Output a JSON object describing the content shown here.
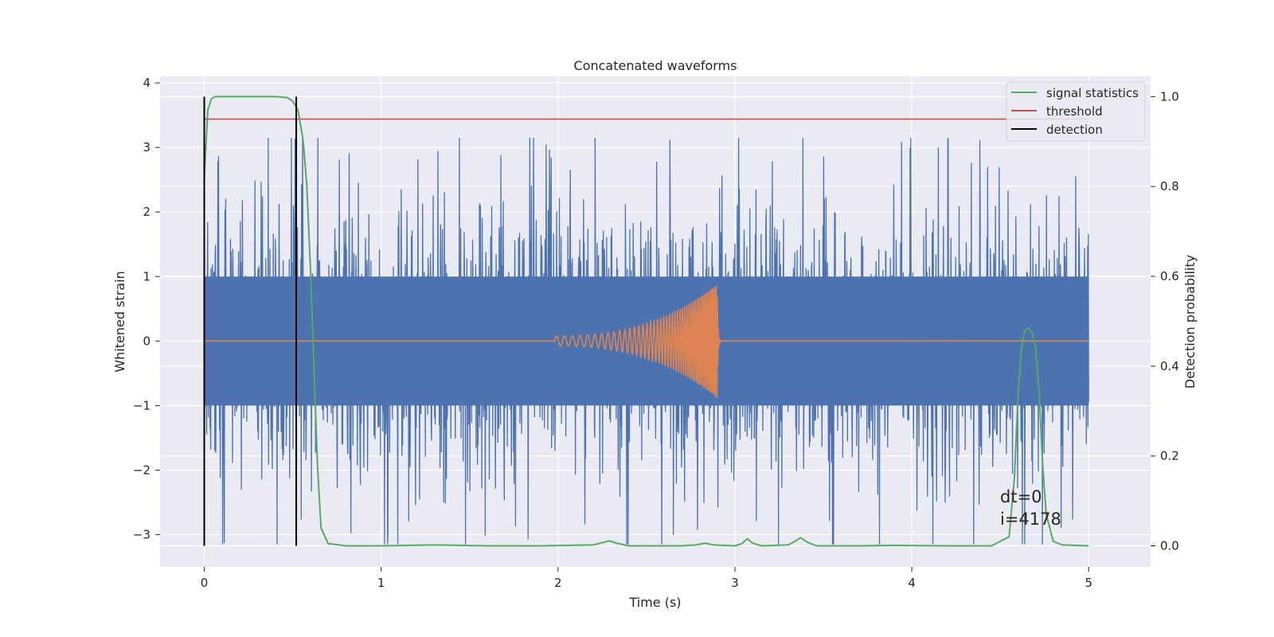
{
  "chart_data": {
    "type": "line",
    "title": "Concatenated waveforms",
    "xlabel": "Time (s)",
    "ylabel": "Whitened strain",
    "ylabel_right": "Detection probability",
    "xlim": [
      -0.25,
      5.35
    ],
    "ylim": [
      -3.5,
      4.1
    ],
    "ylim_right": [
      -0.047,
      1.045
    ],
    "xticks": [
      0,
      1,
      2,
      3,
      4,
      5
    ],
    "yticks": [
      -3,
      -2,
      -1,
      0,
      1,
      2,
      3,
      4
    ],
    "yticks_right": [
      0.0,
      0.2,
      0.4,
      0.6,
      0.8,
      1.0
    ],
    "xtick_labels": [
      "0",
      "1",
      "2",
      "3",
      "4",
      "5"
    ],
    "ytick_labels": [
      "−3",
      "−2",
      "−1",
      "0",
      "1",
      "2",
      "3",
      "4"
    ],
    "ytick_right_labels": [
      "0.0",
      "0.2",
      "0.4",
      "0.6",
      "0.8",
      "1.0"
    ],
    "grid": true,
    "legend_position": "top-right",
    "series": [
      {
        "name": "",
        "role": "whitened strain noise",
        "color": "#4c72b0",
        "axis": "left",
        "x_range": [
          0,
          5
        ],
        "core_amplitude": 1.0,
        "peak_max": 3.15,
        "peak_min": -3.15
      },
      {
        "name": "",
        "role": "injected chirp",
        "color": "#dd8452",
        "axis": "left",
        "x_range": [
          0,
          5
        ],
        "chirp_start": 1.98,
        "chirp_end": 2.9,
        "chirp_peak_amplitude": 0.88
      },
      {
        "name": "signal statistics",
        "color": "#55a868",
        "axis": "right",
        "x": [
          0,
          0.02,
          0.04,
          0.06,
          0.1,
          0.2,
          0.3,
          0.4,
          0.47,
          0.5,
          0.53,
          0.56,
          0.58,
          0.6,
          0.62,
          0.64,
          0.66,
          0.7,
          0.8,
          1.0,
          1.3,
          1.6,
          1.9,
          2.2,
          2.25,
          2.29,
          2.33,
          2.4,
          2.7,
          2.78,
          2.83,
          2.88,
          3.0,
          3.04,
          3.07,
          3.1,
          3.15,
          3.3,
          3.34,
          3.37,
          3.41,
          3.46,
          3.7,
          3.9,
          4.2,
          4.45,
          4.55,
          4.58,
          4.6,
          4.62,
          4.64,
          4.66,
          4.68,
          4.7,
          4.72,
          4.74,
          4.76,
          4.8,
          4.85,
          5.0
        ],
        "y": [
          0.82,
          0.97,
          0.995,
          1.0,
          1.0,
          1.0,
          1.0,
          1.0,
          0.998,
          0.99,
          0.97,
          0.9,
          0.8,
          0.62,
          0.4,
          0.18,
          0.04,
          0.005,
          0.0,
          0.0,
          0.002,
          0.0,
          0.0,
          0.002,
          0.007,
          0.011,
          0.006,
          0.0,
          0.0,
          0.002,
          0.006,
          0.002,
          0.0,
          0.005,
          0.016,
          0.006,
          0.0,
          0.002,
          0.01,
          0.018,
          0.008,
          0.0,
          0.0,
          0.001,
          0.0,
          0.0,
          0.02,
          0.15,
          0.33,
          0.44,
          0.48,
          0.485,
          0.475,
          0.44,
          0.34,
          0.18,
          0.07,
          0.01,
          0.002,
          0.0
        ]
      },
      {
        "name": "threshold",
        "color": "#c44e52",
        "axis": "right",
        "x": [
          0,
          5
        ],
        "y": [
          0.95,
          0.95
        ]
      },
      {
        "name": "detection",
        "color": "#000000",
        "axis": "right",
        "x": [
          0.0,
          0.52
        ],
        "y_range": [
          0.0,
          1.0
        ]
      }
    ],
    "annotations": [
      "dt=0",
      "i=4178"
    ],
    "annotation_position": "bottom-right",
    "colors": {
      "plot_background": "#eaeaf2",
      "grid": "#ffffff",
      "text": "#262626"
    }
  }
}
